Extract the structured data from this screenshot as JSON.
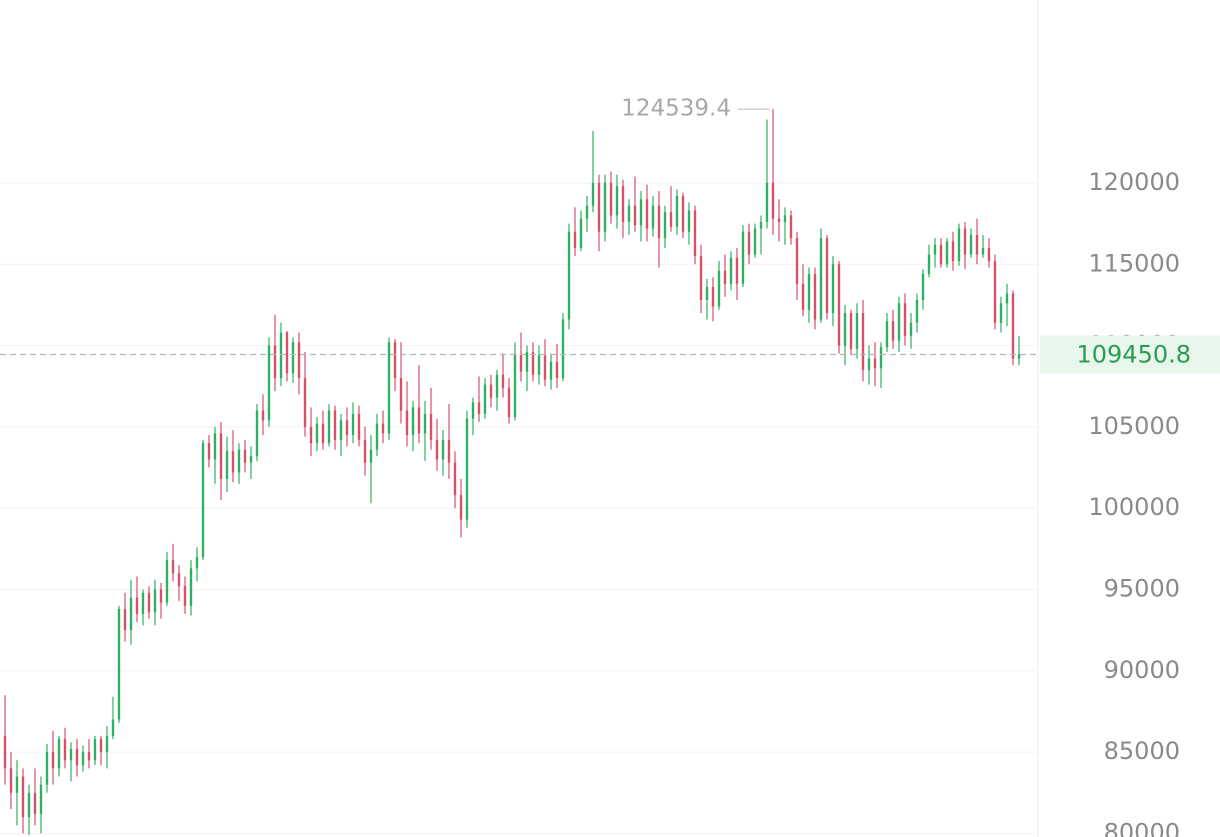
{
  "chart_data": {
    "type": "candlestick",
    "up_color": "#2eb062",
    "down_color": "#d6506a",
    "ylim": [
      79780,
      131250
    ],
    "yticks": [
      80000,
      85000,
      90000,
      95000,
      100000,
      105000,
      110000,
      115000,
      120000
    ],
    "grid": true,
    "last_price": 109450.8,
    "max_label": 124539.4,
    "candles": [
      [
        86000,
        88500,
        83000,
        84000
      ],
      [
        84000,
        85000,
        81500,
        82500
      ],
      [
        82500,
        84500,
        80500,
        83500
      ],
      [
        83500,
        84000,
        80000,
        81000
      ],
      [
        81000,
        83000,
        79900,
        82500
      ],
      [
        82500,
        84000,
        80500,
        81200
      ],
      [
        81200,
        83500,
        80000,
        83000
      ],
      [
        83000,
        85500,
        82500,
        85000
      ],
      [
        85000,
        86300,
        83000,
        84000
      ],
      [
        84000,
        86000,
        83500,
        85800
      ],
      [
        85800,
        86500,
        84000,
        84500
      ],
      [
        84500,
        85600,
        83200,
        85200
      ],
      [
        85200,
        85800,
        83500,
        84200
      ],
      [
        84200,
        85400,
        83800,
        85000
      ],
      [
        85000,
        85800,
        84000,
        84500
      ],
      [
        84500,
        86000,
        84200,
        85800
      ],
      [
        85800,
        86000,
        84200,
        85000
      ],
      [
        85000,
        86600,
        84000,
        86000
      ],
      [
        86000,
        88400,
        85800,
        87000
      ],
      [
        87000,
        94000,
        86800,
        93800
      ],
      [
        93800,
        94800,
        91800,
        92500
      ],
      [
        92500,
        95600,
        91600,
        94500
      ],
      [
        94500,
        95800,
        93000,
        93500
      ],
      [
        93500,
        95000,
        92800,
        94800
      ],
      [
        94800,
        95200,
        93200,
        93600
      ],
      [
        93600,
        95600,
        92800,
        95000
      ],
      [
        95000,
        95400,
        93200,
        94200
      ],
      [
        94200,
        97300,
        94000,
        96800
      ],
      [
        96800,
        97800,
        95500,
        96000
      ],
      [
        96000,
        96500,
        94300,
        95200
      ],
      [
        95200,
        95800,
        93500,
        94000
      ],
      [
        94000,
        96800,
        93400,
        96300
      ],
      [
        96300,
        97600,
        95500,
        97000
      ],
      [
        97000,
        104200,
        96800,
        104000
      ],
      [
        104000,
        104500,
        102500,
        103000
      ],
      [
        103000,
        105000,
        101500,
        104600
      ],
      [
        104600,
        105300,
        100500,
        101800
      ],
      [
        101800,
        104400,
        101000,
        103500
      ],
      [
        103500,
        104800,
        101600,
        102200
      ],
      [
        102200,
        104000,
        101500,
        103600
      ],
      [
        103600,
        104200,
        102200,
        102800
      ],
      [
        102800,
        103800,
        101800,
        103200
      ],
      [
        103200,
        106400,
        102900,
        106000
      ],
      [
        106000,
        107000,
        104500,
        105400
      ],
      [
        105400,
        110500,
        105000,
        110000
      ],
      [
        110000,
        111900,
        107200,
        108000
      ],
      [
        108000,
        111400,
        107500,
        110800
      ],
      [
        110800,
        110900,
        107800,
        108300
      ],
      [
        108300,
        110500,
        107700,
        110200
      ],
      [
        110200,
        110800,
        107000,
        108000
      ],
      [
        108000,
        109600,
        104400,
        105000
      ],
      [
        105000,
        106200,
        103200,
        104000
      ],
      [
        104000,
        105600,
        103500,
        105200
      ],
      [
        105200,
        106000,
        103600,
        104000
      ],
      [
        104000,
        106400,
        103800,
        106000
      ],
      [
        106000,
        106300,
        103600,
        104200
      ],
      [
        104200,
        105800,
        103200,
        105400
      ],
      [
        105400,
        106200,
        103800,
        104500
      ],
      [
        104500,
        106500,
        104000,
        105800
      ],
      [
        105800,
        106300,
        103800,
        104200
      ],
      [
        104200,
        105000,
        102000,
        102800
      ],
      [
        102800,
        104500,
        100300,
        103600
      ],
      [
        103600,
        105800,
        103200,
        105200
      ],
      [
        105200,
        106000,
        104000,
        104600
      ],
      [
        104600,
        110500,
        104200,
        110200
      ],
      [
        110200,
        110400,
        107200,
        108000
      ],
      [
        108000,
        110200,
        105200,
        106000
      ],
      [
        106000,
        107800,
        103800,
        104500
      ],
      [
        104500,
        106600,
        103500,
        106200
      ],
      [
        106200,
        108800,
        104000,
        104600
      ],
      [
        104600,
        106600,
        102900,
        105800
      ],
      [
        105800,
        107400,
        103600,
        104200
      ],
      [
        104200,
        105500,
        102300,
        103000
      ],
      [
        103000,
        104800,
        102000,
        104200
      ],
      [
        104200,
        106400,
        101800,
        102800
      ],
      [
        102800,
        103500,
        100000,
        100800
      ],
      [
        100800,
        101800,
        98200,
        99300
      ],
      [
        99300,
        106000,
        98800,
        105500
      ],
      [
        105500,
        106800,
        104500,
        106500
      ],
      [
        106500,
        108100,
        105300,
        105800
      ],
      [
        105800,
        108000,
        105500,
        107600
      ],
      [
        107600,
        108200,
        106200,
        106800
      ],
      [
        106800,
        108500,
        106000,
        108200
      ],
      [
        108200,
        109500,
        106800,
        107400
      ],
      [
        107400,
        108000,
        105200,
        105600
      ],
      [
        105600,
        110200,
        105400,
        109500
      ],
      [
        109500,
        110800,
        107800,
        108400
      ],
      [
        108400,
        110000,
        107200,
        109600
      ],
      [
        109600,
        110200,
        107800,
        108200
      ],
      [
        108200,
        110000,
        107600,
        109400
      ],
      [
        109400,
        110400,
        107500,
        107900
      ],
      [
        107900,
        109500,
        107300,
        109000
      ],
      [
        109000,
        110100,
        107400,
        108000
      ],
      [
        108000,
        112000,
        107800,
        111600
      ],
      [
        111600,
        117500,
        111000,
        117000
      ],
      [
        117000,
        118500,
        115500,
        116000
      ],
      [
        116000,
        118300,
        115800,
        117800
      ],
      [
        117800,
        119200,
        117000,
        118600
      ],
      [
        118600,
        123200,
        118200,
        120000
      ],
      [
        120000,
        120500,
        115800,
        117000
      ],
      [
        117000,
        120500,
        116400,
        120000
      ],
      [
        120000,
        120700,
        117500,
        118000
      ],
      [
        118000,
        120500,
        117200,
        119800
      ],
      [
        119800,
        120200,
        116600,
        117600
      ],
      [
        117600,
        119000,
        116800,
        118600
      ],
      [
        118600,
        120400,
        117000,
        117400
      ],
      [
        117400,
        119500,
        116400,
        119000
      ],
      [
        119000,
        119900,
        116400,
        117200
      ],
      [
        117200,
        119200,
        116700,
        118600
      ],
      [
        118600,
        119500,
        114800,
        116600
      ],
      [
        116600,
        118600,
        116000,
        118200
      ],
      [
        118200,
        119800,
        117000,
        117300
      ],
      [
        117300,
        119600,
        116800,
        119200
      ],
      [
        119200,
        119400,
        116600,
        117000
      ],
      [
        117000,
        118800,
        116200,
        118300
      ],
      [
        118300,
        118600,
        115000,
        115500
      ],
      [
        115500,
        116200,
        112000,
        112800
      ],
      [
        112800,
        114100,
        111600,
        113600
      ],
      [
        113600,
        114200,
        111500,
        112400
      ],
      [
        112400,
        115200,
        112200,
        114600
      ],
      [
        114600,
        115600,
        113000,
        113800
      ],
      [
        113800,
        115800,
        113400,
        115400
      ],
      [
        115400,
        116000,
        112800,
        113800
      ],
      [
        113800,
        117400,
        113600,
        117000
      ],
      [
        117000,
        117500,
        115000,
        115600
      ],
      [
        115600,
        117500,
        115400,
        117200
      ],
      [
        117200,
        118000,
        115600,
        117600
      ],
      [
        117600,
        123900,
        117200,
        120000
      ],
      [
        120000,
        124539.4,
        116800,
        117800
      ],
      [
        117800,
        119000,
        116400,
        117600
      ],
      [
        117600,
        118500,
        116200,
        118000
      ],
      [
        118000,
        118300,
        116200,
        116600
      ],
      [
        116600,
        117000,
        112800,
        113800
      ],
      [
        113800,
        115000,
        111800,
        112200
      ],
      [
        112200,
        114800,
        111400,
        114400
      ],
      [
        114400,
        114800,
        111000,
        111600
      ],
      [
        111600,
        117200,
        111400,
        116600
      ],
      [
        116600,
        116800,
        111600,
        112000
      ],
      [
        112000,
        115500,
        111200,
        115000
      ],
      [
        115000,
        115200,
        109500,
        110000
      ],
      [
        110000,
        112500,
        108800,
        112000
      ],
      [
        112000,
        112200,
        109400,
        109800
      ],
      [
        109800,
        112600,
        109200,
        112000
      ],
      [
        112000,
        112800,
        107800,
        108500
      ],
      [
        108500,
        110000,
        107600,
        109200
      ],
      [
        109200,
        110200,
        107500,
        108600
      ],
      [
        108600,
        110200,
        107400,
        109900
      ],
      [
        109900,
        112000,
        109600,
        111500
      ],
      [
        111500,
        112200,
        109800,
        110300
      ],
      [
        110300,
        113000,
        109600,
        112600
      ],
      [
        112600,
        113200,
        110000,
        110600
      ],
      [
        110600,
        112000,
        109800,
        111400
      ],
      [
        111400,
        113200,
        110800,
        112800
      ],
      [
        112800,
        114700,
        112200,
        114400
      ],
      [
        114400,
        116200,
        114200,
        115600
      ],
      [
        115600,
        116600,
        114800,
        116200
      ],
      [
        116200,
        116600,
        114800,
        115000
      ],
      [
        115000,
        116600,
        114800,
        116400
      ],
      [
        116400,
        117000,
        114600,
        115200
      ],
      [
        115200,
        117500,
        114900,
        117200
      ],
      [
        117200,
        117600,
        114700,
        115600
      ],
      [
        115600,
        117200,
        115400,
        116800
      ],
      [
        116800,
        117800,
        115000,
        115600
      ],
      [
        115600,
        116800,
        115400,
        116000
      ],
      [
        116000,
        116600,
        114800,
        115200
      ],
      [
        115200,
        115600,
        111000,
        111400
      ],
      [
        111400,
        113000,
        110800,
        112600
      ],
      [
        112600,
        113800,
        111200,
        113200
      ],
      [
        113200,
        113400,
        108800,
        109200
      ],
      [
        109200,
        110600,
        108800,
        109450.8
      ]
    ]
  }
}
